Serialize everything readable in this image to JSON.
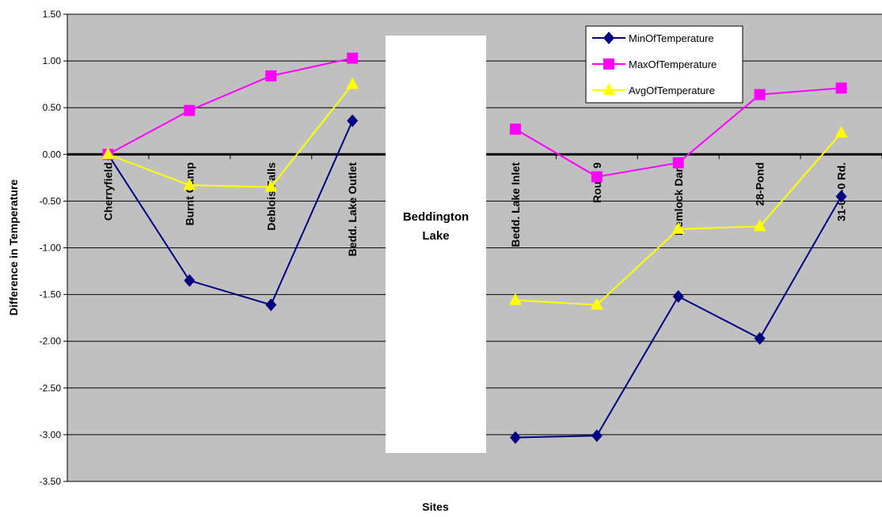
{
  "chart_data": {
    "type": "line",
    "x_label": "Sites",
    "y_label": "Difference in Temperature",
    "categories": [
      "Cherryfield",
      "Burnt Camp",
      "Deblois Falls",
      "Bedd. Lake Outlet",
      "Beddington Lake",
      "Bedd. Lake Inlet",
      "Route 9",
      "Hemlock Dam",
      "28-Pond",
      "31-00-0 Rd."
    ],
    "series": [
      {
        "name": "MinOfTemperature",
        "color": "#000080",
        "marker": "diamond",
        "values": [
          0,
          -1.35,
          -1.61,
          0.36,
          null,
          -3.03,
          -3.01,
          -1.52,
          -1.97,
          -0.45
        ]
      },
      {
        "name": "MaxOfTemperature",
        "color": "#ff00ff",
        "marker": "square",
        "values": [
          0,
          0.47,
          0.84,
          1.03,
          null,
          0.27,
          -0.24,
          -0.09,
          0.64,
          0.71
        ]
      },
      {
        "name": "AvgOfTemperature",
        "color": "#ffff00",
        "marker": "triangle",
        "values": [
          0,
          -0.33,
          -0.35,
          0.75,
          null,
          -1.56,
          -1.61,
          -0.8,
          -0.77,
          0.23
        ]
      }
    ],
    "ylim": [
      -3.5,
      1.5
    ],
    "yticks": [
      {
        "value": -3.5,
        "label": "-3.50"
      },
      {
        "value": -3,
        "label": "-3.00"
      },
      {
        "value": -2.5,
        "label": "-2.50"
      },
      {
        "value": -2,
        "label": "-2.00"
      },
      {
        "value": -1.5,
        "label": "-1.50"
      },
      {
        "value": -1,
        "label": "-1.00"
      },
      {
        "value": -0.5,
        "label": "-0.50"
      },
      {
        "value": 0,
        "label": "0.00"
      },
      {
        "value": 0.5,
        "label": "0.50"
      },
      {
        "value": 1,
        "label": "1.00"
      },
      {
        "value": 1.5,
        "label": "1.50"
      }
    ],
    "grid": true,
    "legend": "upper right",
    "plot_background": "#c0c0c0"
  }
}
